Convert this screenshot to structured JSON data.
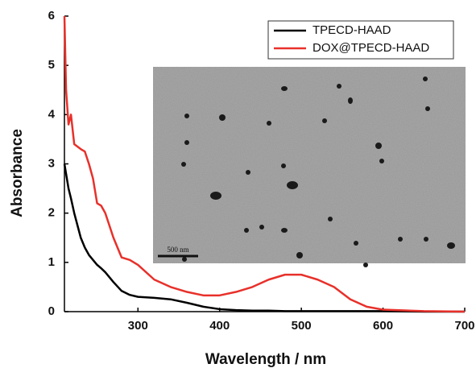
{
  "chart_data": {
    "type": "line",
    "x_label": "Wavelength / nm",
    "y_label": "Absorbance",
    "x": [
      210,
      212,
      215,
      218,
      222,
      230,
      235,
      240,
      245,
      250,
      255,
      260,
      270,
      280,
      290,
      300,
      320,
      340,
      360,
      380,
      400,
      420,
      440,
      460,
      480,
      500,
      520,
      540,
      560,
      580,
      600,
      650,
      700
    ],
    "series": [
      {
        "name": "TPECD-HAAD",
        "color": "#000000",
        "values": [
          3.0,
          2.8,
          2.5,
          2.3,
          2.0,
          1.5,
          1.3,
          1.15,
          1.05,
          0.95,
          0.88,
          0.8,
          0.6,
          0.42,
          0.34,
          0.3,
          0.28,
          0.25,
          0.18,
          0.1,
          0.05,
          0.03,
          0.02,
          0.02,
          0.01,
          0.01,
          0.01,
          0.01,
          0.01,
          0.01,
          0.01,
          0,
          0
        ]
      },
      {
        "name": "DOX@TPECD-HAAD",
        "color": "#e8302a",
        "values": [
          6.0,
          4.5,
          3.8,
          4.0,
          3.4,
          3.3,
          3.25,
          3.0,
          2.7,
          2.2,
          2.15,
          2.0,
          1.5,
          1.1,
          1.05,
          0.95,
          0.65,
          0.5,
          0.4,
          0.33,
          0.33,
          0.4,
          0.5,
          0.65,
          0.75,
          0.75,
          0.65,
          0.5,
          0.25,
          0.1,
          0.04,
          0.01,
          0
        ]
      }
    ],
    "xlim": [
      210,
      700
    ],
    "ylim": [
      0,
      6
    ],
    "xticks": [
      300,
      400,
      500,
      600,
      700
    ],
    "yticks": [
      0,
      1,
      2,
      3,
      4,
      5,
      6
    ],
    "grid": false,
    "legend": "upper-right",
    "inset_scale_label": "500 nm"
  }
}
